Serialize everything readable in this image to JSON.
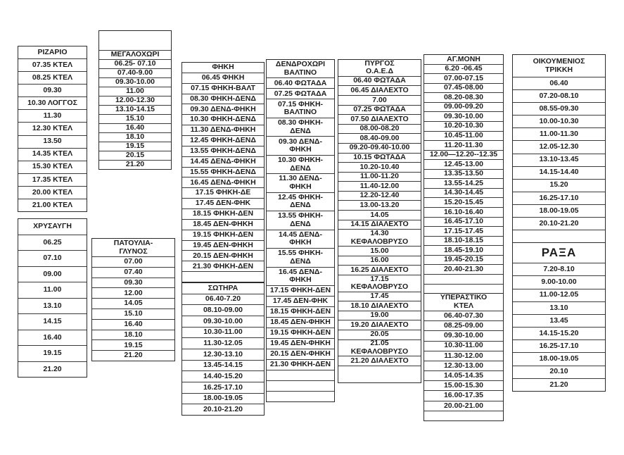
{
  "schedules": {
    "rizario": {
      "title": "ΡΙΖΑΡΙΟ",
      "rows": [
        "07.35  ΚΤΕΛ",
        "08.25 ΚΤΕΛ",
        "09.30",
        "10.30  ΛΟΓΓΟΣ",
        "11.30",
        "12.30 ΚΤΕΛ",
        "13.50",
        "14.35 ΚΤΕΛ",
        "15.30 ΚΤΕΛ",
        "17.35 ΚΤΕΛ",
        "20.00  ΚΤΕΛ",
        "21.00 ΚΤΕΛ"
      ]
    },
    "chrysavgi": {
      "title": "ΧΡΥΣΑΥΓΗ",
      "rows": [
        "06.25",
        "07.10",
        "09.00",
        "11.00",
        "13.10",
        "14.15",
        "16.40",
        "19.15",
        "21.20"
      ]
    },
    "megalochori": {
      "title": "ΜΕΓΑΛΟΧΩΡΙ",
      "rows": [
        "06.25- 07.10",
        "07.40-9.00",
        "09.30-10.00",
        "11.00",
        "12.00-12.30",
        "13.10-14.15",
        "15.10",
        "16.40",
        "18.10",
        "19.15",
        "20.15",
        "21.20"
      ]
    },
    "patoulia": {
      "title": "ΠΑΤΟΥΛΙΑ-\nΓΛΥΝΟΣ",
      "rows": [
        "07.00",
        "07.40",
        "09.30",
        "12.00",
        "14.05",
        "15.10",
        "16.40",
        "18.10",
        "19.15",
        "21.20"
      ]
    },
    "fiki": {
      "title": "ΦΗΚΗ",
      "rows": [
        "06.45 ΦΗΚΗ",
        "07.15 ΦΗΚΗ-ΒΑΛΤ",
        "08.30 ΦΗΚΗ-ΔΕΝΔ",
        "09.30 ΔΕΝΔ-ΦΗΚΗ",
        "10.30 ΦΗΚΗ-ΔΕΝΔ",
        "11.30 ΔΕΝΔ-ΦΗΚΗ",
        "12.45 ΦΗΚΗ-ΔΕΝΔ",
        "13.55 ΦΗΚΗ-ΔΕΝΔ",
        "14.45 ΔΕΝΔ-ΦΗΚΗ",
        "15.55 ΦΗΚΗ-ΔΕΝΔ",
        "16.45 ΔΕΝΔ-ΦΗΚΗ",
        "17.15 ΦΗΚΗ-ΔΕ",
        "17.45 ΔΕΝ-ΦΗΚ",
        "18.15 ΦΗΚΗ-ΔΕΝ",
        "18.45 ΔΕΝ-ΦΗΚΗ",
        "19.15 ΦΗΚΗ-ΔΕΝ",
        "19.45 ΔΕΝ-ΦΗΚΗ",
        "20.15 ΔΕΝ-ΦΗΚΗ",
        "21.30 ΦΗΚΗ-ΔΕΝ",
        ""
      ]
    },
    "sotira": {
      "title": "ΣΩΤΗΡΑ",
      "rows": [
        "06.40-7.20",
        "08.10-09.00",
        "09.30-10.00",
        "10.30-11.00",
        "11.30-12.05",
        "12.30-13.10",
        "13.45-14.15",
        "14.40-15.20",
        "16.25-17.10",
        "18.00-19.05",
        "20.10-21.20"
      ]
    },
    "dendrochori": {
      "title": "ΔΕΝΔΡΟΧΩΡΙ\nΒΑΛΤΙΝΟ",
      "rows": [
        "06.40 ΦΩΤΑΔΑ",
        "07.25 ΦΩΤΑΔΑ",
        "07.15 ΦΗΚΗ-\nΒΑΛΤΙΝΟ",
        "08.30 ΦΗΚΗ-\nΔΕΝΔ",
        "09.30 ΔΕΝΔ-\nΦΗΚΗ",
        "10.30 ΦΗΚΗ-\nΔΕΝΔ",
        "11.30 ΔΕΝΔ-\nΦΗΚΗ",
        "12.45 ΦΗΚΗ-\nΔΕΝΔ",
        "13.55 ΦΗΚΗ-\nΔΕΝΔ",
        "14.45 ΔΕΝΔ-\nΦΗΚΗ",
        "15.55 ΦΗΚΗ-\nΔΕΝΔ",
        "16.45 ΔΕΝΔ-\nΦΗΚΗ",
        "17.15 ΦΗΚΗ-ΔΕΝ",
        "17.45 ΔΕΝ-ΦΗΚ",
        "18.15 ΦΗΚΗ-ΔΕΝ",
        "18.45 ΔΕΝ-ΦΗΚΗ",
        "19.15 ΦΗΚΗ-ΔΕΝ",
        "19.45 ΔΕΝ-ΦΗΚΗ",
        "20.15 ΔΕΝ-ΦΗΚΗ",
        "21.30 ΦΗΚΗ-ΔΕΝ",
        "",
        "",
        ""
      ]
    },
    "pyrgos": {
      "title": "ΠΥΡΓΟΣ\nΟ.Α.Ε.Δ",
      "rows": [
        "06.40 ΦΩΤΑΔΑ",
        "06.45 ΔΙΑΛΕΧΤΟ",
        "7.00",
        "07.25 ΦΩΤΑΔΑ",
        "07.50 ΔΙΑΛΕΧΤΟ",
        "08.00-08.20",
        "08.40-09.00",
        "09.20-09.40-10.00",
        "10.15 ΦΩΤΑΔΑ",
        "10.20-10.40",
        "11.00-11.20",
        "11.40-12.00",
        "12.20-12.40",
        "13.00-13.20",
        "14.05",
        "14.15 ΔΙΑΛΕΧΤΟ",
        "14.30\nΚΕΦΑΛΟΒΡΥΣΟ",
        "15.00",
        "16.00",
        "16.25 ΔΙΑΛΕΧΤΟ",
        "17.15\nΚΕΦΑΛΟΒΡΥΣΟ",
        "17.45",
        "18.10 ΔΙΑΛΕΧΤΟ",
        "19.00",
        "19.20 ΔΙΑΛΕΧΤΟ",
        "20.05",
        "21.05\nΚΕΦΑΛΟΒΡΥΣΟ",
        "21.20 ΔΙΑΛΕΧΤΟ",
        "\n"
      ]
    },
    "agmoni": {
      "title": "ΑΓ.ΜΟΝΗ",
      "rows": [
        "6.20  -06.45",
        "07.00-07.15",
        "07.45-08.00",
        "08.20-08.30",
        "09.00-09.20",
        "09.30-10.00",
        "10.20-10.30",
        "10.45-11.00",
        "11.20-11.30",
        "12.00—12.20--12.35",
        "12.45-13.00",
        "13.35-13.50",
        "13.55-14.25",
        "14.30-14.45",
        "15.20-15.45",
        "16.10-16.40",
        "16.45-17.10",
        "17.15-17.45",
        "18.10-18.15",
        "18.45-19.10",
        "19.45-20.15",
        "20.40-21.30",
        "",
        ""
      ]
    },
    "yperastiko": {
      "title": "ΥΠΕΡΑΣΤΙΚΟ\nΚΤΕΛ",
      "rows": [
        "06.40-07.30",
        "08.25-09.00",
        "09.30-10.00",
        "10.30-11.00",
        "11.30-12.00",
        "12.30-13.00",
        "14.05-14.35",
        "15.00-15.30",
        "16.00-17.35",
        "20.00-21.00",
        ""
      ]
    },
    "oikoumenios": {
      "title": "ΟΙΚΟΥΜΕΝΙΟΣ\nΤΡΙΚΚΗ",
      "rows": [
        "06.40",
        "07.20-08.10",
        "08.55-09.30",
        "10.00-10.30",
        "11.00-11.30",
        "12.05-12.30",
        "13.10-13.45",
        "14.15-14.40",
        "15.20",
        "16.25-17.10",
        "18.00-19.05",
        "20.10-21.20",
        ""
      ]
    },
    "raxa": {
      "title": "ΡΑΞΑ",
      "rows": [
        "7.20-8.10",
        "9.00-10.00",
        "11.00-12.05",
        "13.10",
        "13.45",
        "14.15-15.20",
        "16.25-17.10",
        "18.00-19.05",
        "20.10",
        "21.20"
      ]
    }
  }
}
